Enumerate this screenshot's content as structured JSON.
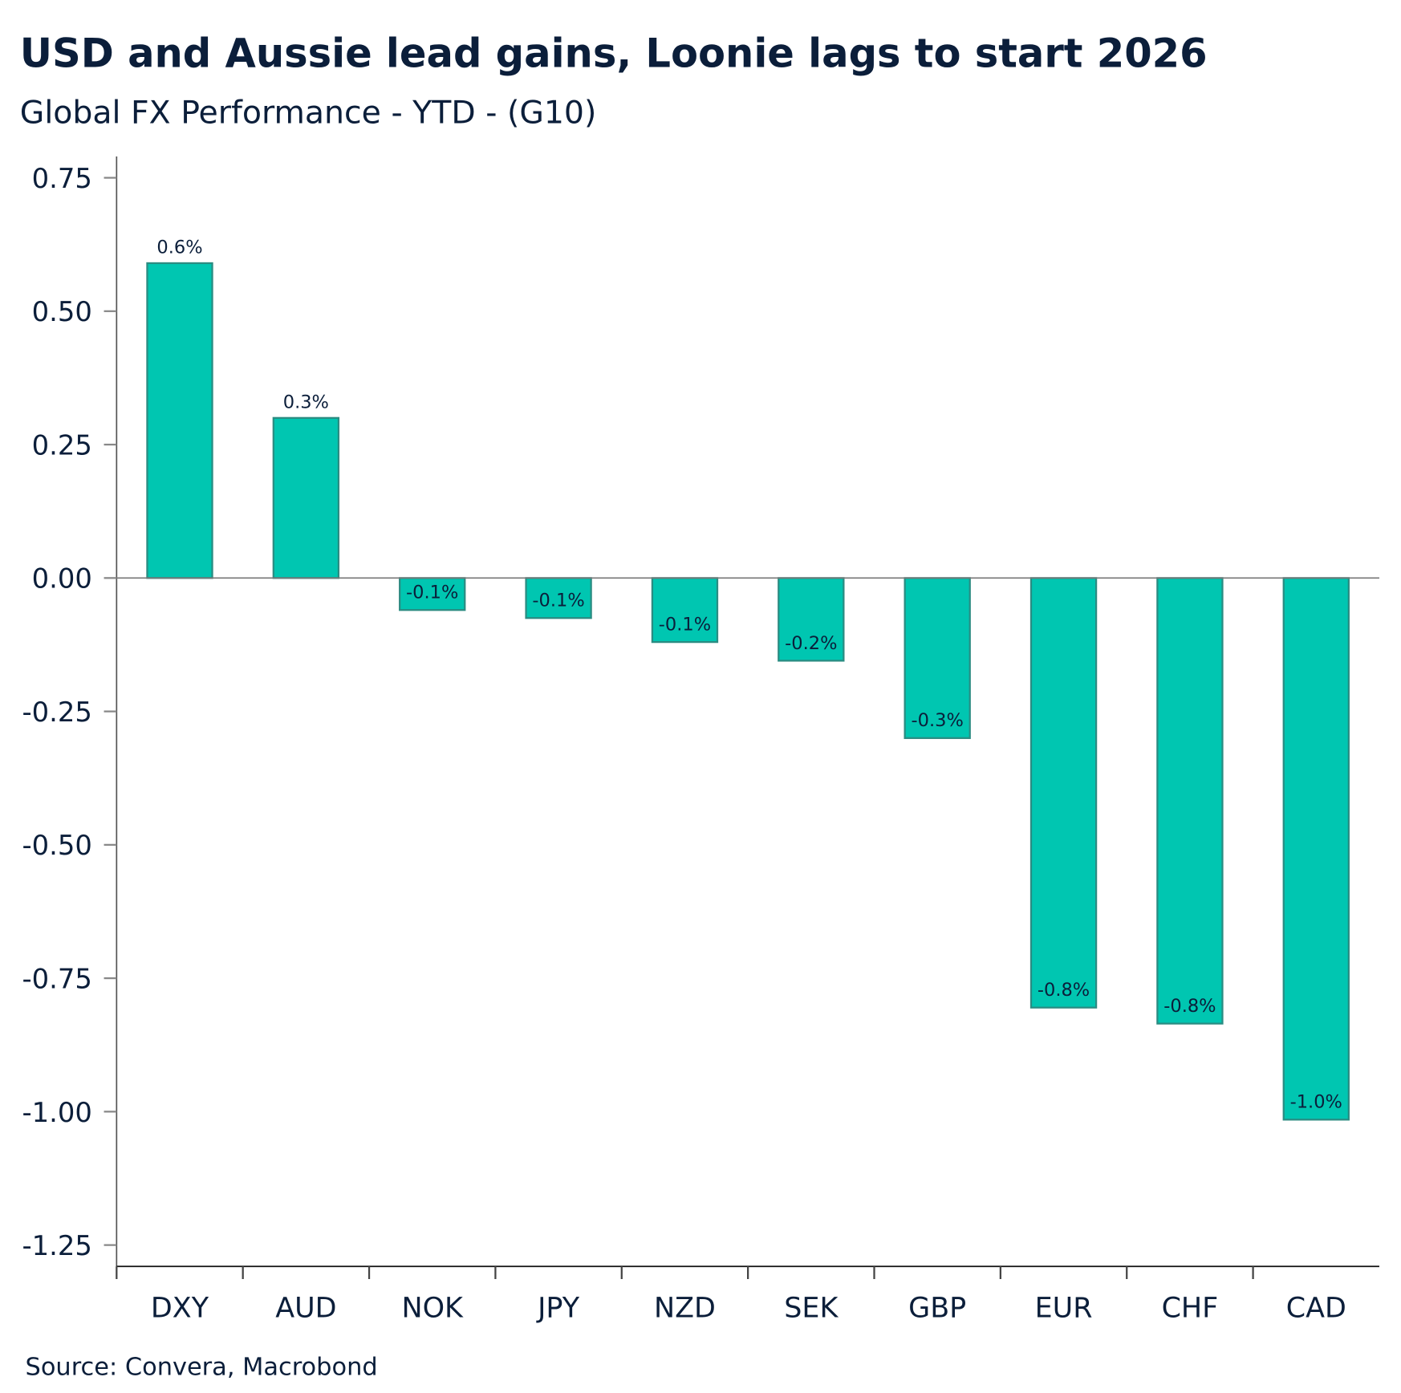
{
  "chart_data": {
    "type": "bar",
    "title": "USD and Aussie lead gains, Loonie lags to start 2026",
    "subtitle": "Global FX Performance - YTD - (G10)",
    "xlabel": "",
    "ylabel": "",
    "categories": [
      "DXY",
      "AUD",
      "NOK",
      "JPY",
      "NZD",
      "SEK",
      "GBP",
      "EUR",
      "CHF",
      "CAD"
    ],
    "values": [
      0.59,
      0.3,
      -0.06,
      -0.075,
      -0.12,
      -0.155,
      -0.3,
      -0.805,
      -0.835,
      -1.015
    ],
    "data_labels": [
      "0.6%",
      "0.3%",
      "-0.1%",
      "-0.1%",
      "-0.1%",
      "-0.2%",
      "-0.3%",
      "-0.8%",
      "-0.8%",
      "-1.0%"
    ],
    "ylim": [
      -1.29,
      0.79
    ],
    "yticks": [
      0.75,
      0.5,
      0.25,
      0,
      -0.25,
      -0.5,
      -0.75,
      -1,
      -1.25
    ],
    "ytick_labels": [
      "0.75",
      "0.50",
      "0.25",
      "0.00",
      "-0.25",
      "-0.50",
      "-0.75",
      "-1.00",
      "-1.25"
    ],
    "grid": false,
    "legend": "none",
    "source": "Source: Convera, Macrobond",
    "colors": {
      "bar": "#00c6b1",
      "bar_stroke": "#2b8c82",
      "text": "#0b1e3a"
    }
  }
}
